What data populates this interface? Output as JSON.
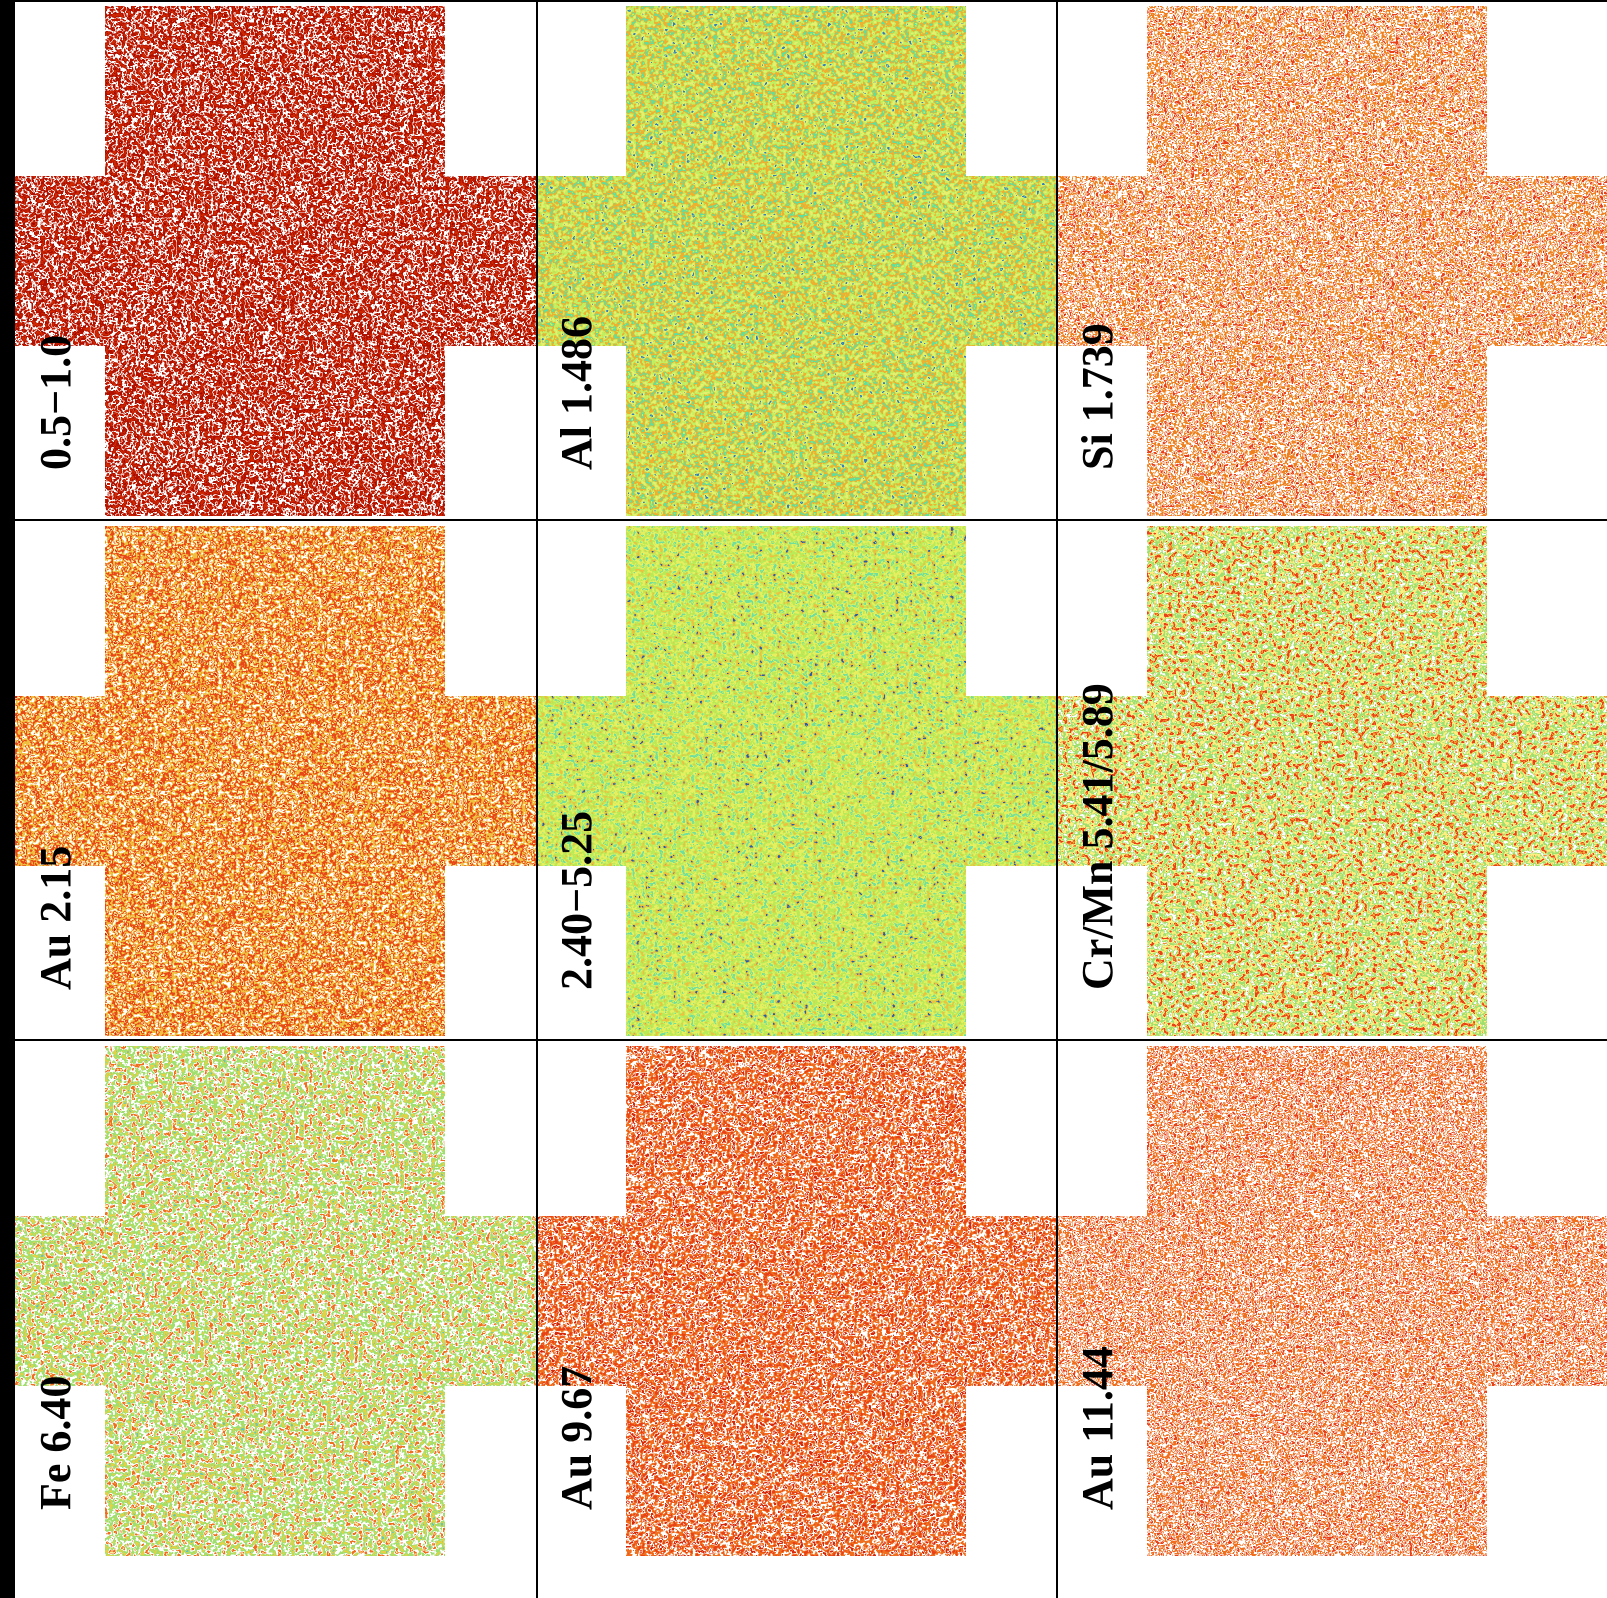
{
  "panels": [
    {
      "label": "0.5−1.0"
    },
    {
      "label": "Al 1.486"
    },
    {
      "label": "Si 1.739"
    },
    {
      "label": "Au 2.15"
    },
    {
      "label": "2.40−5.25"
    },
    {
      "label": "Cr/Mn 5.41/5.89"
    },
    {
      "label": "Fe 6.40"
    },
    {
      "label": "Au 9.67"
    },
    {
      "label": "Au 11.44"
    }
  ]
}
